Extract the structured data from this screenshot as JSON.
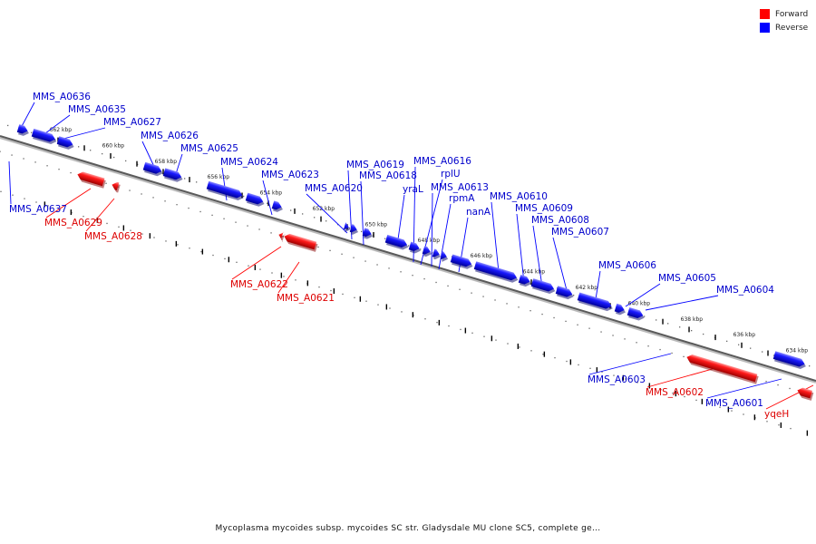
{
  "legend": {
    "forward": {
      "label": "Forward",
      "color": "#ff0000"
    },
    "reverse": {
      "label": "Reverse",
      "color": "#0000ff"
    }
  },
  "caption": "Mycoplasma mycoides subsp. mycoides SC str. Gladysdale MU clone SC5, complete ge...",
  "axis": {
    "unit": "kbp",
    "ticks": [
      662,
      660,
      658,
      656,
      654,
      652,
      650,
      648,
      646,
      644,
      642,
      640,
      638,
      636,
      634
    ]
  },
  "genes": [
    {
      "label": "MMS_A0637",
      "strand": "reverse"
    },
    {
      "label": "MMS_A0636",
      "strand": "reverse"
    },
    {
      "label": "MMS_A0635",
      "strand": "reverse"
    },
    {
      "label": "MMS_A0629",
      "strand": "forward"
    },
    {
      "label": "MMS_A0628",
      "strand": "forward"
    },
    {
      "label": "MMS_A0627",
      "strand": "reverse"
    },
    {
      "label": "MMS_A0626",
      "strand": "reverse"
    },
    {
      "label": "MMS_A0625",
      "strand": "reverse"
    },
    {
      "label": "MMS_A0624",
      "strand": "reverse"
    },
    {
      "label": "MMS_A0623",
      "strand": "reverse"
    },
    {
      "label": "MMS_A0622",
      "strand": "forward"
    },
    {
      "label": "MMS_A0621",
      "strand": "forward"
    },
    {
      "label": "MMS_A0620",
      "strand": "reverse"
    },
    {
      "label": "MMS_A0619",
      "strand": "reverse"
    },
    {
      "label": "MMS_A0618",
      "strand": "reverse"
    },
    {
      "label": "yraL",
      "strand": "reverse"
    },
    {
      "label": "MMS_A0616",
      "strand": "reverse"
    },
    {
      "label": "rplU",
      "strand": "reverse"
    },
    {
      "label": "MMS_A0613",
      "strand": "reverse"
    },
    {
      "label": "rpmA",
      "strand": "reverse"
    },
    {
      "label": "nanA",
      "strand": "reverse"
    },
    {
      "label": "MMS_A0610",
      "strand": "reverse"
    },
    {
      "label": "MMS_A0609",
      "strand": "reverse"
    },
    {
      "label": "MMS_A0608",
      "strand": "reverse"
    },
    {
      "label": "MMS_A0607",
      "strand": "reverse"
    },
    {
      "label": "MMS_A0606",
      "strand": "reverse"
    },
    {
      "label": "MMS_A0605",
      "strand": "reverse"
    },
    {
      "label": "MMS_A0604",
      "strand": "reverse"
    },
    {
      "label": "MMS_A0603",
      "strand": "reverse"
    },
    {
      "label": "MMS_A0602",
      "strand": "forward"
    },
    {
      "label": "MMS_A0601",
      "strand": "reverse"
    },
    {
      "label": "yqeH",
      "strand": "forward"
    }
  ]
}
